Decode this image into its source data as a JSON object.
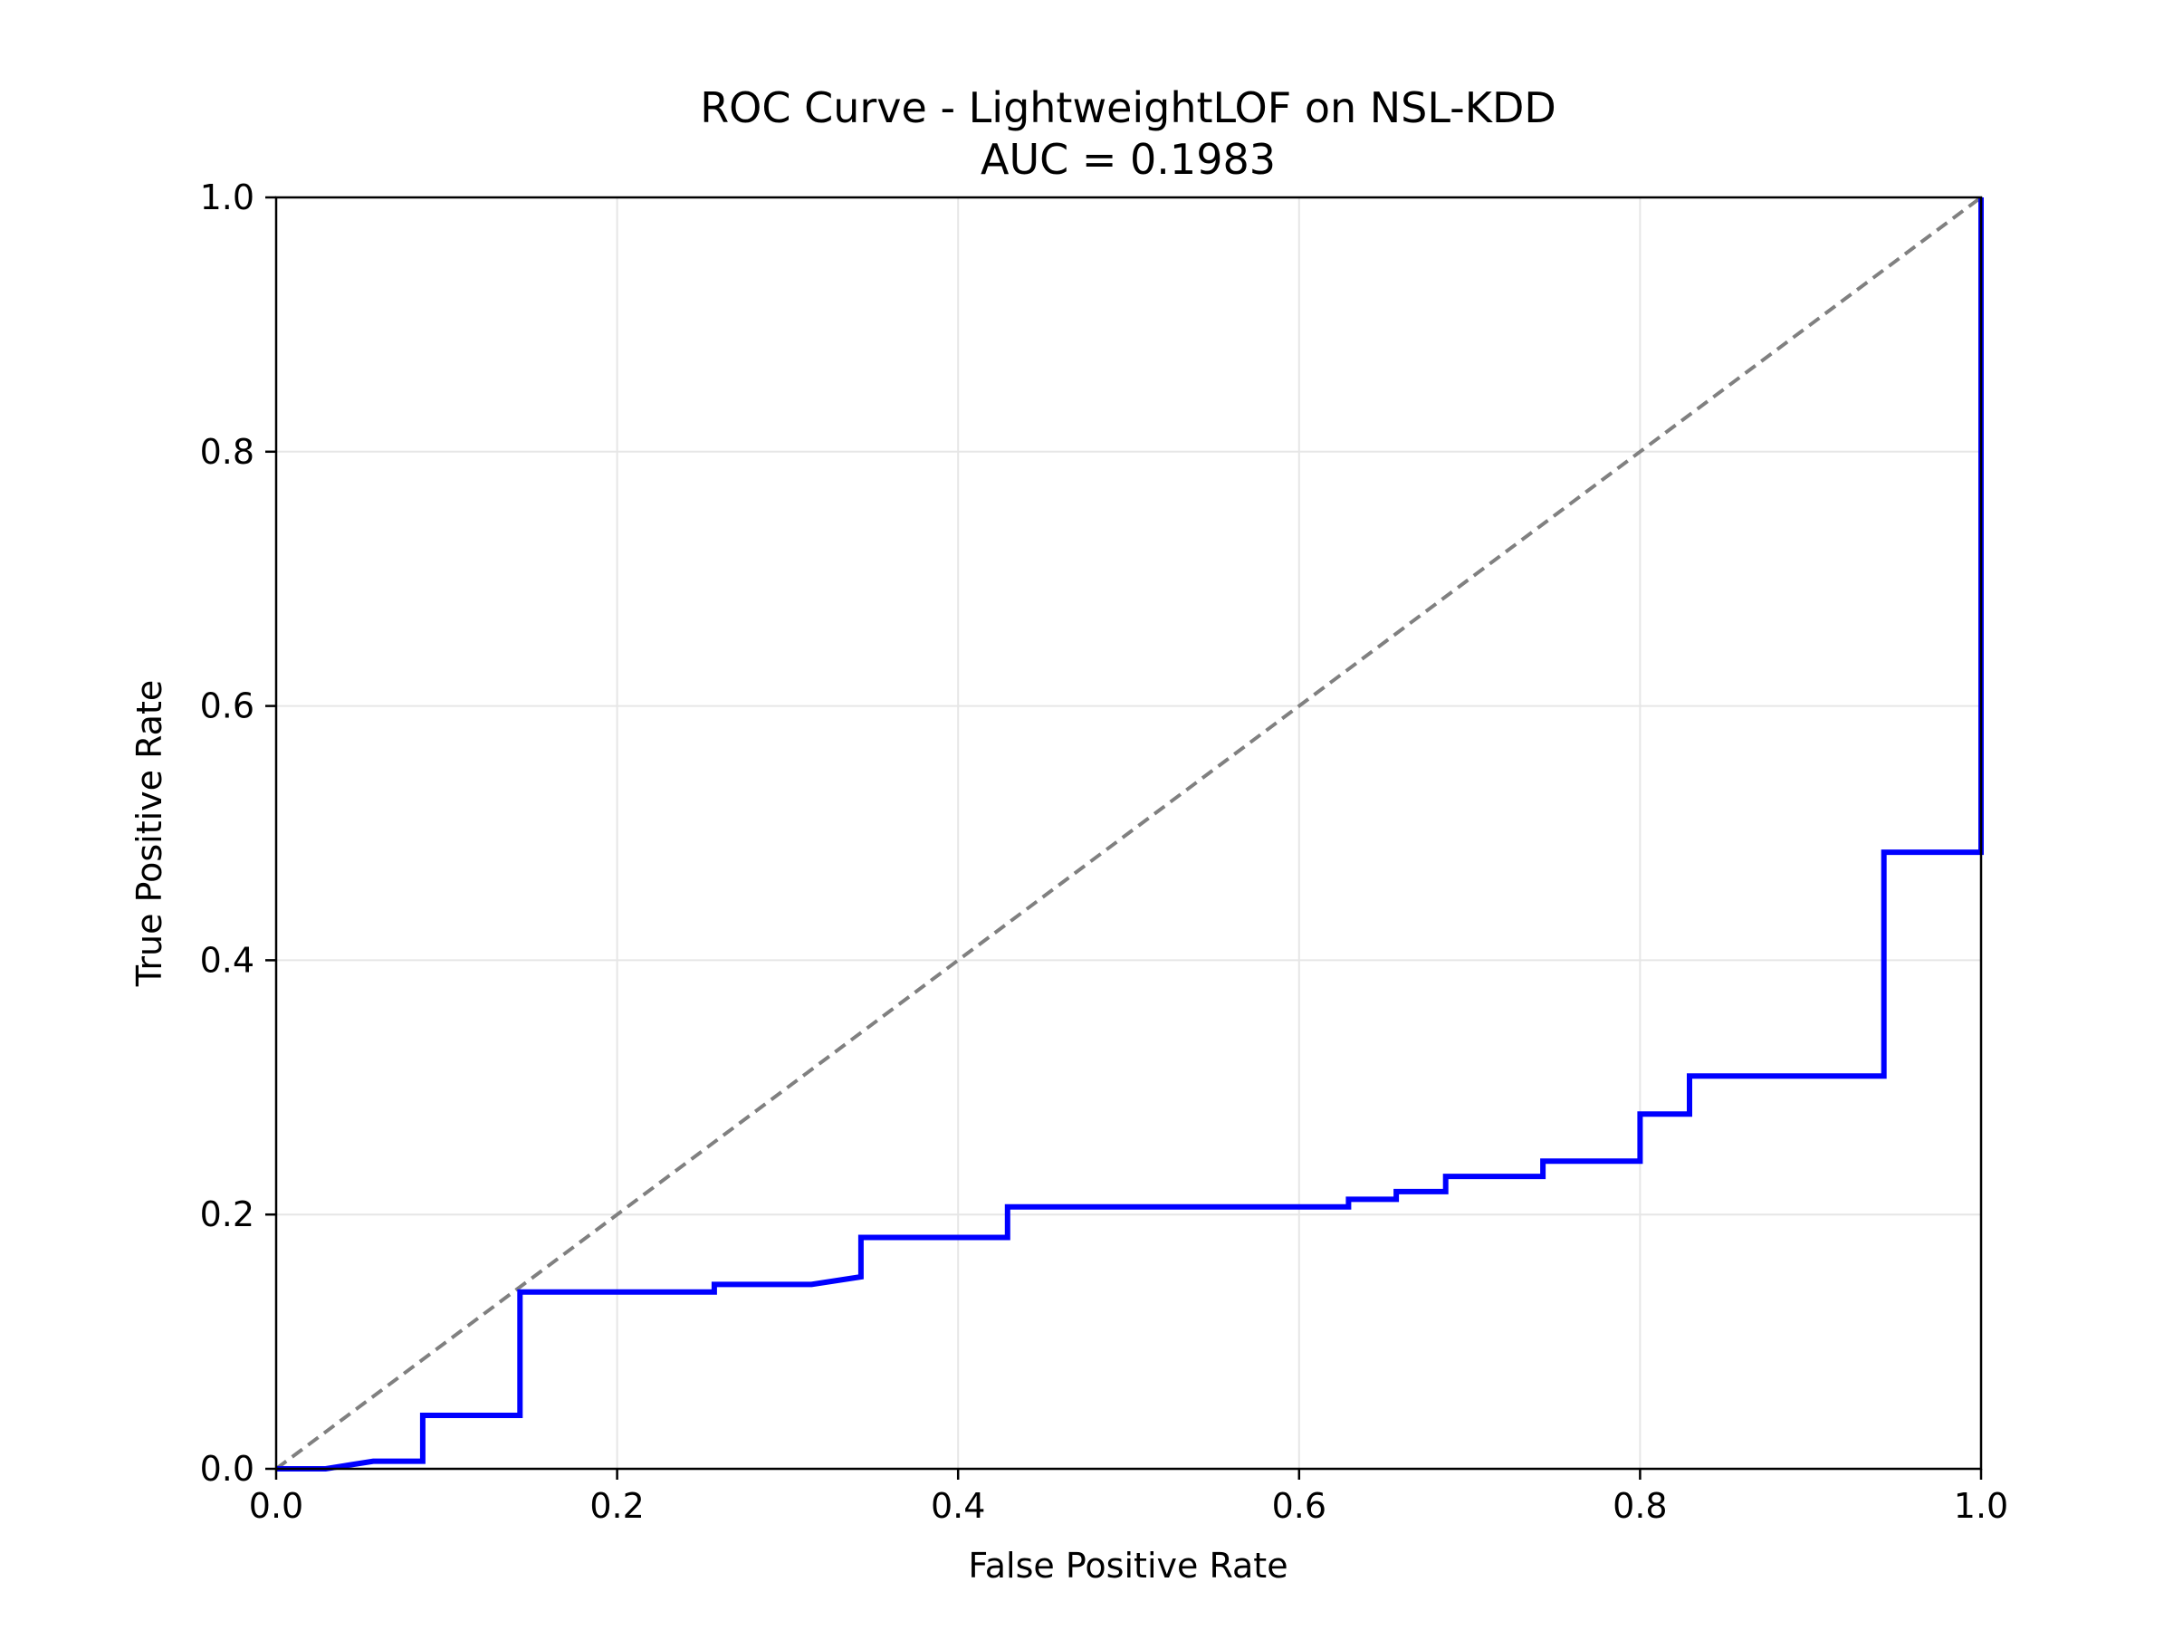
{
  "chart_data": {
    "type": "line",
    "title": "ROC Curve - LightweightLOF on NSL-KDD",
    "subtitle": "AUC = 0.1983",
    "xlabel": "False Positive Rate",
    "ylabel": "True Positive Rate",
    "xlim": [
      0.0,
      1.0
    ],
    "ylim": [
      0.0,
      1.0
    ],
    "xticks": [
      "0.0",
      "0.2",
      "0.4",
      "0.6",
      "0.8",
      "1.0"
    ],
    "yticks": [
      "0.0",
      "0.2",
      "0.4",
      "0.6",
      "0.8",
      "1.0"
    ],
    "grid": true,
    "legend": "none",
    "series": [
      {
        "color": "#0000ff",
        "style": "solid",
        "points": [
          [
            0.0,
            0.0
          ],
          [
            0.029,
            0.0
          ],
          [
            0.057,
            0.006
          ],
          [
            0.086,
            0.006
          ],
          [
            0.086,
            0.042
          ],
          [
            0.143,
            0.042
          ],
          [
            0.143,
            0.139
          ],
          [
            0.257,
            0.139
          ],
          [
            0.257,
            0.145
          ],
          [
            0.314,
            0.145
          ],
          [
            0.343,
            0.151
          ],
          [
            0.343,
            0.182
          ],
          [
            0.429,
            0.182
          ],
          [
            0.429,
            0.206
          ],
          [
            0.629,
            0.206
          ],
          [
            0.629,
            0.212
          ],
          [
            0.657,
            0.212
          ],
          [
            0.657,
            0.218
          ],
          [
            0.686,
            0.218
          ],
          [
            0.686,
            0.23
          ],
          [
            0.743,
            0.23
          ],
          [
            0.743,
            0.242
          ],
          [
            0.8,
            0.242
          ],
          [
            0.8,
            0.279
          ],
          [
            0.829,
            0.279
          ],
          [
            0.829,
            0.309
          ],
          [
            0.943,
            0.309
          ],
          [
            0.943,
            0.485
          ],
          [
            1.0,
            0.485
          ],
          [
            1.0,
            1.0
          ]
        ]
      },
      {
        "color": "#808080",
        "style": "dashed",
        "points": [
          [
            0.0,
            0.0
          ],
          [
            1.0,
            1.0
          ]
        ]
      }
    ]
  }
}
